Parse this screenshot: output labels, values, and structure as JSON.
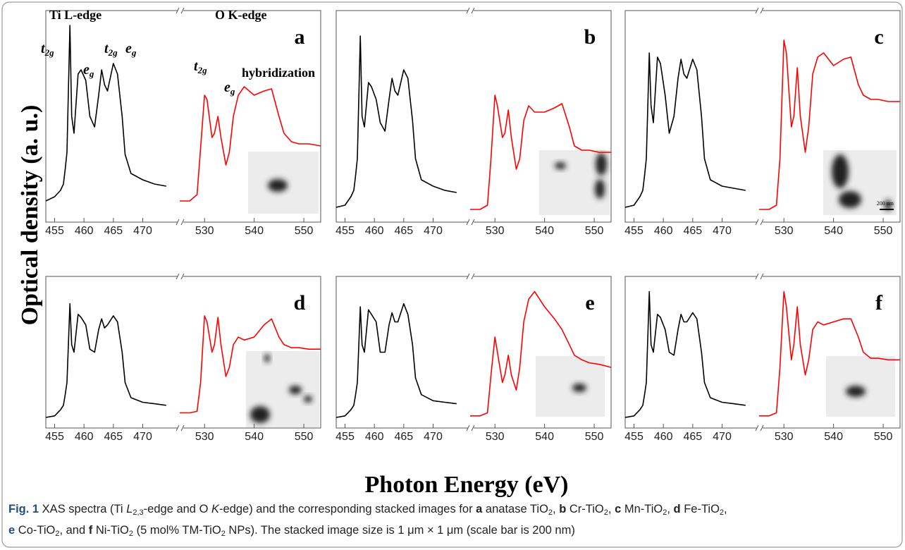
{
  "y_label": "Optical density (a. u.)",
  "x_label": "Photon Energy (eV)",
  "caption": {
    "lines": [
      [
        {
          "text": "Fig. 1",
          "style": "bold"
        },
        {
          "text": " XAS spectra (Ti "
        },
        {
          "text": "L",
          "style": "italic"
        },
        {
          "text": "2,3",
          "style": "sub"
        },
        {
          "text": "-edge and O "
        },
        {
          "text": "K",
          "style": "italic"
        },
        {
          "text": "-edge) and the corresponding stacked images for "
        },
        {
          "text": "a",
          "style": "bold"
        },
        {
          "text": " anatase TiO"
        },
        {
          "text": "2",
          "style": "sub"
        },
        {
          "text": ", "
        },
        {
          "text": "b",
          "style": "bold"
        },
        {
          "text": " Cr-TiO"
        },
        {
          "text": "2",
          "style": "sub"
        },
        {
          "text": ", "
        },
        {
          "text": "c",
          "style": "bold"
        },
        {
          "text": " Mn-TiO"
        },
        {
          "text": "2",
          "style": "sub"
        },
        {
          "text": ", "
        },
        {
          "text": "d",
          "style": "bold"
        },
        {
          "text": " Fe-TiO"
        },
        {
          "text": "2",
          "style": "sub"
        },
        {
          "text": ","
        }
      ],
      [
        {
          "text": "e",
          "style": "bold"
        },
        {
          "text": " Co-TiO"
        },
        {
          "text": "2",
          "style": "sub"
        },
        {
          "text": ", and "
        },
        {
          "text": "f",
          "style": "bold"
        },
        {
          "text": " Ni-TiO"
        },
        {
          "text": "2",
          "style": "sub"
        },
        {
          "text": " (5 mol% TM-TiO"
        },
        {
          "text": "2",
          "style": "sub"
        },
        {
          "text": " NPs). The stacked image size is 1 μm × 1 μm (scale bar is 200 nm)"
        }
      ]
    ]
  },
  "chart_data": [
    {
      "type": "line",
      "label": "a",
      "xlim": [
        453.5,
        476.3
      ],
      "xticks": [
        455,
        460,
        465,
        470
      ],
      "x2lim": [
        525,
        553.4
      ],
      "x2ticks": [
        530,
        540,
        550
      ],
      "ylim": [
        0,
        1
      ],
      "annotations": [
        {
          "text": "Ti L-edge"
        },
        {
          "text": "O K-edge"
        },
        {
          "text": "t",
          "sub": "2g"
        },
        {
          "text": "e",
          "sub": "g"
        },
        {
          "text": "t",
          "sub": "2g"
        },
        {
          "text": "e",
          "sub": "g"
        },
        {
          "text": "t",
          "sub": "2g"
        },
        {
          "text": "e",
          "sub": "g"
        },
        {
          "text": "hybridization"
        }
      ],
      "series": [
        {
          "color": "#000000",
          "x": [
            453.5,
            455,
            456,
            456.5,
            456.8,
            457.1,
            457.6,
            457.9,
            458.3,
            459,
            459.5,
            460.3,
            461,
            461.8,
            462.5,
            463,
            463.5,
            464,
            465,
            465.7,
            466.5,
            467,
            468,
            470,
            472,
            474
          ],
          "values": [
            0.1,
            0.12,
            0.15,
            0.18,
            0.25,
            0.33,
            0.93,
            0.5,
            0.42,
            0.7,
            0.72,
            0.67,
            0.5,
            0.45,
            0.6,
            0.72,
            0.65,
            0.62,
            0.75,
            0.7,
            0.5,
            0.32,
            0.23,
            0.2,
            0.18,
            0.17
          ]
        },
        {
          "color": "#ff0000",
          "axis": "x2",
          "x": [
            525,
            527,
            528.5,
            529.2,
            530,
            530.5,
            531.5,
            532,
            532.7,
            533.3,
            534.3,
            535,
            535.8,
            536.8,
            538,
            540,
            542,
            543.5,
            545,
            546,
            547.5,
            549,
            551,
            553.4
          ],
          "values": [
            0.1,
            0.1,
            0.13,
            0.35,
            0.6,
            0.58,
            0.4,
            0.42,
            0.5,
            0.4,
            0.27,
            0.33,
            0.5,
            0.6,
            0.64,
            0.6,
            0.62,
            0.63,
            0.5,
            0.42,
            0.38,
            0.37,
            0.37,
            0.36
          ]
        }
      ]
    },
    {
      "type": "line",
      "label": "b",
      "xlim": [
        453.5,
        476.3
      ],
      "xticks": [
        455,
        460,
        465,
        470
      ],
      "x2lim": [
        525,
        553.4
      ],
      "x2ticks": [
        530,
        540,
        550
      ],
      "ylim": [
        0,
        1
      ],
      "series": [
        {
          "color": "#000000",
          "x": [
            453.5,
            455,
            456,
            456.5,
            456.8,
            457.1,
            457.6,
            457.9,
            458.3,
            459,
            459.5,
            460.3,
            461,
            461.8,
            462.5,
            463,
            463.5,
            464,
            465,
            465.7,
            466.5,
            467,
            468,
            470,
            472,
            474
          ],
          "values": [
            0.07,
            0.08,
            0.12,
            0.15,
            0.22,
            0.3,
            0.88,
            0.5,
            0.45,
            0.66,
            0.64,
            0.58,
            0.47,
            0.43,
            0.58,
            0.68,
            0.62,
            0.6,
            0.72,
            0.68,
            0.48,
            0.3,
            0.2,
            0.17,
            0.15,
            0.14
          ]
        },
        {
          "color": "#ff0000",
          "axis": "x2",
          "x": [
            525,
            527,
            528.5,
            529.2,
            530,
            530.5,
            531.5,
            532,
            532.7,
            533.3,
            534.3,
            535,
            535.8,
            536.8,
            538,
            540,
            542,
            543.5,
            545,
            546,
            547.5,
            549,
            551,
            553.4
          ],
          "values": [
            0.06,
            0.06,
            0.08,
            0.3,
            0.6,
            0.55,
            0.4,
            0.42,
            0.53,
            0.4,
            0.25,
            0.3,
            0.48,
            0.55,
            0.52,
            0.52,
            0.54,
            0.56,
            0.45,
            0.36,
            0.34,
            0.34,
            0.33,
            0.33
          ]
        }
      ]
    },
    {
      "type": "line",
      "label": "c",
      "xlim": [
        453.5,
        476.3
      ],
      "xticks": [
        455,
        460,
        465,
        470
      ],
      "x2lim": [
        525,
        553.4
      ],
      "x2ticks": [
        530,
        540,
        550
      ],
      "ylim": [
        0,
        1
      ],
      "inset_scale_label": "200 nm",
      "series": [
        {
          "color": "#000000",
          "x": [
            453.5,
            455,
            456,
            456.5,
            456.8,
            457.1,
            457.6,
            457.9,
            458.3,
            459,
            459.5,
            460.3,
            461,
            461.8,
            462.5,
            463,
            463.5,
            464,
            465,
            465.7,
            466.5,
            467,
            468,
            470,
            472,
            474
          ],
          "values": [
            0.07,
            0.08,
            0.12,
            0.15,
            0.22,
            0.3,
            0.8,
            0.55,
            0.47,
            0.78,
            0.75,
            0.6,
            0.42,
            0.5,
            0.68,
            0.77,
            0.7,
            0.68,
            0.77,
            0.72,
            0.5,
            0.3,
            0.2,
            0.17,
            0.16,
            0.15
          ]
        },
        {
          "color": "#ff0000",
          "axis": "x2",
          "x": [
            525,
            527,
            528.5,
            529.2,
            530,
            530.5,
            531.5,
            532,
            532.7,
            533.3,
            534.3,
            535,
            535.8,
            536.8,
            538,
            540,
            542,
            543.5,
            545,
            546,
            547.5,
            549,
            551,
            553.4
          ],
          "values": [
            0.06,
            0.06,
            0.08,
            0.3,
            0.86,
            0.8,
            0.45,
            0.5,
            0.73,
            0.5,
            0.33,
            0.45,
            0.7,
            0.78,
            0.8,
            0.74,
            0.77,
            0.78,
            0.65,
            0.6,
            0.58,
            0.58,
            0.57,
            0.57
          ]
        }
      ]
    },
    {
      "type": "line",
      "label": "d",
      "xlim": [
        453.5,
        476.3
      ],
      "xticks": [
        455,
        460,
        465,
        470
      ],
      "x2lim": [
        525,
        553.4
      ],
      "x2ticks": [
        530,
        540,
        550
      ],
      "ylim": [
        0,
        1
      ],
      "series": [
        {
          "color": "#000000",
          "x": [
            453.5,
            455,
            456,
            456.5,
            456.8,
            457.1,
            457.6,
            457.9,
            458.3,
            459,
            459.5,
            460.3,
            461,
            461.8,
            462.5,
            463,
            463.5,
            464,
            465,
            465.7,
            466.5,
            467,
            468,
            470,
            472,
            474
          ],
          "values": [
            0.07,
            0.08,
            0.12,
            0.15,
            0.22,
            0.3,
            0.82,
            0.55,
            0.5,
            0.75,
            0.73,
            0.68,
            0.52,
            0.5,
            0.65,
            0.72,
            0.66,
            0.68,
            0.74,
            0.7,
            0.5,
            0.3,
            0.2,
            0.17,
            0.16,
            0.15
          ]
        },
        {
          "color": "#ff0000",
          "axis": "x2",
          "x": [
            525,
            527,
            528.5,
            529.2,
            530,
            530.5,
            531.5,
            532,
            532.7,
            533.3,
            534.3,
            535,
            535.8,
            536.8,
            538,
            540,
            542,
            543.5,
            545,
            546,
            547.5,
            549,
            551,
            553.4
          ],
          "values": [
            0.1,
            0.1,
            0.11,
            0.3,
            0.74,
            0.7,
            0.5,
            0.55,
            0.73,
            0.55,
            0.34,
            0.4,
            0.55,
            0.6,
            0.58,
            0.6,
            0.68,
            0.72,
            0.6,
            0.55,
            0.53,
            0.53,
            0.52,
            0.52
          ]
        }
      ]
    },
    {
      "type": "line",
      "label": "e",
      "xlim": [
        453.5,
        476.3
      ],
      "xticks": [
        455,
        460,
        465,
        470
      ],
      "x2lim": [
        525,
        553.4
      ],
      "x2ticks": [
        530,
        540,
        550
      ],
      "ylim": [
        0,
        1
      ],
      "series": [
        {
          "color": "#000000",
          "x": [
            453.5,
            455,
            456,
            456.5,
            456.8,
            457.1,
            457.6,
            457.9,
            458.3,
            459,
            459.5,
            460.3,
            461,
            461.8,
            462.5,
            463,
            463.5,
            464,
            465,
            465.7,
            466.5,
            467,
            468,
            470,
            472,
            474
          ],
          "values": [
            0.07,
            0.08,
            0.12,
            0.15,
            0.22,
            0.3,
            0.8,
            0.55,
            0.5,
            0.78,
            0.75,
            0.7,
            0.5,
            0.5,
            0.68,
            0.76,
            0.7,
            0.7,
            0.82,
            0.75,
            0.55,
            0.33,
            0.22,
            0.18,
            0.17,
            0.16
          ]
        },
        {
          "color": "#ff0000",
          "axis": "x2",
          "x": [
            525,
            527,
            528.5,
            529.2,
            530,
            530.5,
            531.5,
            532,
            532.7,
            533.3,
            534.3,
            535,
            535.8,
            536.8,
            538,
            540,
            542,
            543.5,
            545,
            546,
            547.5,
            549,
            551,
            553.4
          ],
          "values": [
            0.08,
            0.08,
            0.1,
            0.35,
            0.6,
            0.5,
            0.3,
            0.35,
            0.48,
            0.35,
            0.25,
            0.4,
            0.7,
            0.85,
            0.9,
            0.8,
            0.72,
            0.65,
            0.55,
            0.48,
            0.45,
            0.43,
            0.42,
            0.4
          ]
        }
      ]
    },
    {
      "type": "line",
      "label": "f",
      "xlim": [
        453.5,
        476.3
      ],
      "xticks": [
        455,
        460,
        465,
        470
      ],
      "x2lim": [
        525,
        553.4
      ],
      "x2ticks": [
        530,
        540,
        550
      ],
      "ylim": [
        0,
        1
      ],
      "series": [
        {
          "color": "#000000",
          "x": [
            453.5,
            455,
            456,
            456.5,
            456.8,
            457.1,
            457.6,
            457.9,
            458.3,
            459,
            459.5,
            460.3,
            461,
            461.8,
            462.5,
            463,
            463.5,
            464,
            465,
            465.7,
            466.5,
            467,
            468,
            470,
            472,
            474
          ],
          "values": [
            0.07,
            0.08,
            0.12,
            0.15,
            0.22,
            0.3,
            0.9,
            0.55,
            0.5,
            0.75,
            0.73,
            0.65,
            0.5,
            0.48,
            0.65,
            0.75,
            0.7,
            0.7,
            0.76,
            0.72,
            0.5,
            0.3,
            0.2,
            0.17,
            0.16,
            0.15
          ]
        },
        {
          "color": "#ff0000",
          "axis": "x2",
          "x": [
            525,
            527,
            528.5,
            529.2,
            530,
            530.5,
            531.5,
            532,
            532.7,
            533.3,
            534.3,
            535,
            535.8,
            536.8,
            538,
            540,
            542,
            543.5,
            545,
            546,
            547.5,
            549,
            551,
            553.4
          ],
          "values": [
            0.08,
            0.08,
            0.1,
            0.4,
            0.9,
            0.8,
            0.45,
            0.55,
            0.8,
            0.55,
            0.35,
            0.45,
            0.65,
            0.7,
            0.68,
            0.7,
            0.72,
            0.72,
            0.6,
            0.5,
            0.46,
            0.46,
            0.45,
            0.45
          ]
        }
      ]
    }
  ]
}
